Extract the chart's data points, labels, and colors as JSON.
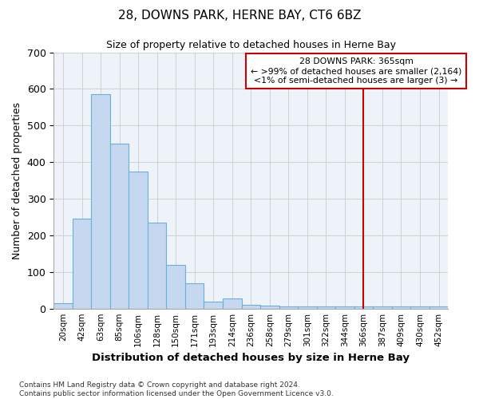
{
  "title": "28, DOWNS PARK, HERNE BAY, CT6 6BZ",
  "subtitle": "Size of property relative to detached houses in Herne Bay",
  "xlabel": "Distribution of detached houses by size in Herne Bay",
  "ylabel": "Number of detached properties",
  "categories": [
    "20sqm",
    "42sqm",
    "63sqm",
    "85sqm",
    "106sqm",
    "128sqm",
    "150sqm",
    "171sqm",
    "193sqm",
    "214sqm",
    "236sqm",
    "258sqm",
    "279sqm",
    "301sqm",
    "322sqm",
    "344sqm",
    "366sqm",
    "387sqm",
    "409sqm",
    "430sqm",
    "452sqm"
  ],
  "bar_heights": [
    15,
    245,
    585,
    450,
    375,
    235,
    120,
    68,
    18,
    28,
    10,
    8,
    5,
    5,
    5,
    5,
    5,
    5,
    5,
    5,
    5
  ],
  "bar_color": "#c5d8f0",
  "bar_edge_color": "#6baed6",
  "vline_color": "#cc0000",
  "vline_index": 16,
  "annotation_title": "28 DOWNS PARK: 365sqm",
  "annotation_line1": "← >99% of detached houses are smaller (2,164)",
  "annotation_line2": "<1% of semi-detached houses are larger (3) →",
  "annotation_box_color": "white",
  "annotation_box_edge": "#cc0000",
  "grid_color": "#cccccc",
  "bg_color": "#eef3fa",
  "footer1": "Contains HM Land Registry data © Crown copyright and database right 2024.",
  "footer2": "Contains public sector information licensed under the Open Government Licence v3.0.",
  "ylim": [
    0,
    700
  ],
  "yticks": [
    0,
    100,
    200,
    300,
    400,
    500,
    600,
    700
  ]
}
